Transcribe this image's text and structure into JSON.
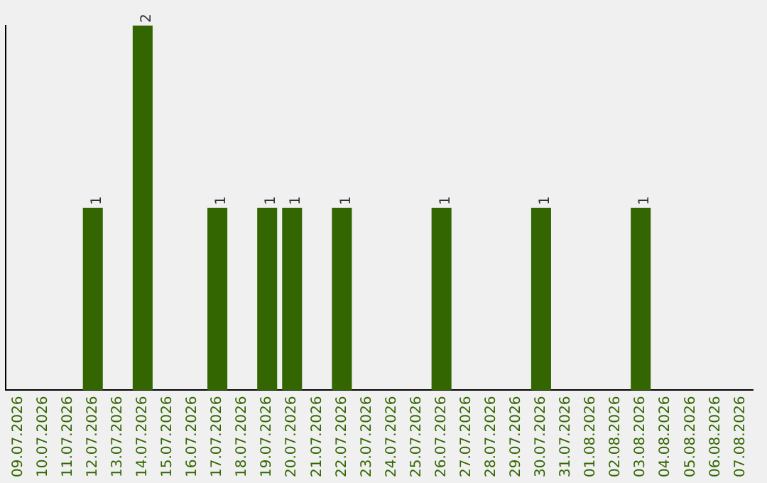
{
  "chart_data": {
    "type": "bar",
    "categories": [
      "09.07.2026",
      "10.07.2026",
      "11.07.2026",
      "12.07.2026",
      "13.07.2026",
      "14.07.2026",
      "15.07.2026",
      "16.07.2026",
      "17.07.2026",
      "18.07.2026",
      "19.07.2026",
      "20.07.2026",
      "21.07.2026",
      "22.07.2026",
      "23.07.2026",
      "24.07.2026",
      "25.07.2026",
      "26.07.2026",
      "27.07.2026",
      "28.07.2026",
      "29.07.2026",
      "30.07.2026",
      "31.07.2026",
      "01.08.2026",
      "02.08.2026",
      "03.08.2026",
      "04.08.2026",
      "05.08.2026",
      "06.08.2026",
      "07.08.2026"
    ],
    "values": [
      0,
      0,
      0,
      1,
      0,
      2,
      0,
      0,
      1,
      0,
      1,
      1,
      0,
      1,
      0,
      0,
      0,
      1,
      0,
      0,
      0,
      1,
      0,
      0,
      0,
      1,
      0,
      0,
      0,
      0
    ],
    "value_labels": [
      null,
      null,
      null,
      "1",
      null,
      "2",
      null,
      null,
      "1",
      null,
      "1",
      "1",
      null,
      "1",
      null,
      null,
      null,
      "1",
      null,
      null,
      null,
      "1",
      null,
      null,
      null,
      "1",
      null,
      null,
      null,
      null
    ],
    "color": "#336600",
    "ylim": [
      0,
      2
    ],
    "tick_labels": "x",
    "grid": false,
    "legend": false
  }
}
